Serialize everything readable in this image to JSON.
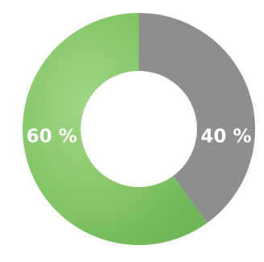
{
  "chart_data": {
    "type": "donut",
    "values": [
      40,
      60
    ],
    "value_labels": [
      "40 %",
      "60 %"
    ],
    "colors": [
      "#8e8e91",
      "#88c96c"
    ]
  }
}
